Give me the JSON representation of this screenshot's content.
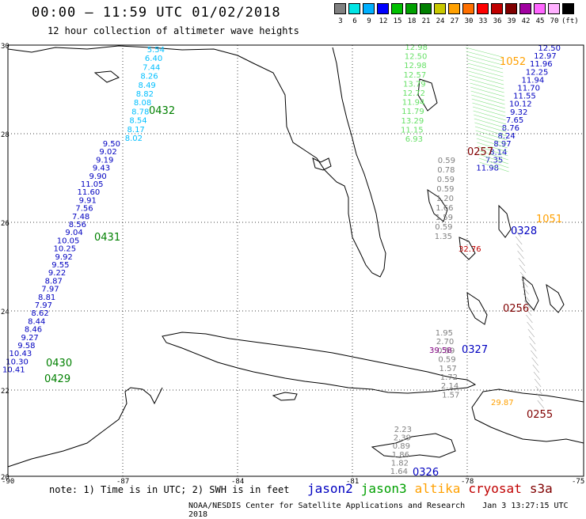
{
  "header": {
    "title": "00:00 — 11:59 UTC 01/02/2018",
    "subtitle": "12 hour collection of altimeter wave heights"
  },
  "scale": {
    "colors": [
      "#808080",
      "#00e5e5",
      "#00b0ff",
      "#0000ff",
      "#00c000",
      "#00a000",
      "#008000",
      "#c8c800",
      "#ffa000",
      "#ff7000",
      "#ff0000",
      "#c00000",
      "#800000",
      "#a000a0",
      "#ff66ff",
      "#ffb0ff",
      "#000000"
    ],
    "labels": [
      "3",
      "6",
      "9",
      "12",
      "15",
      "18",
      "21",
      "24",
      "27",
      "30",
      "33",
      "36",
      "39",
      "42",
      "45",
      "70",
      "(ft)"
    ]
  },
  "map": {
    "lat_ticks": [
      "30",
      "28",
      "26",
      "24",
      "22",
      "20"
    ],
    "lon_ticks": [
      "-90",
      "-87",
      "-84",
      "-81",
      "-78",
      "-75"
    ]
  },
  "tracks": [
    {
      "sat": "jason3",
      "color": "#00bfff",
      "values": [
        "5.54",
        "6.40",
        "7.44",
        "8.26",
        "8.49",
        "8.82",
        "8.08",
        "8.78",
        "8.54",
        "8.17",
        "8.02"
      ]
    },
    {
      "sat": "jason2",
      "color": "#0000c0",
      "values": [
        "9.50",
        "9.02",
        "9.19",
        "9.43",
        "9.90",
        "11.05",
        "11.60",
        "9.91",
        "7.56",
        "7.48",
        "8.56",
        "9.04",
        "10.05",
        "10.25",
        "9.92",
        "9.55",
        "9.22",
        "8.87",
        "7.97",
        "8.81",
        "7.97",
        "8.62",
        "8.44",
        "8.46",
        "9.27",
        "9.58",
        "10.43",
        "10.30",
        "10.41"
      ]
    },
    {
      "sat": "jason3",
      "color": "#66e066",
      "values": [
        "12.98",
        "12.50",
        "12.98",
        "12.57",
        "13.79",
        "12.72",
        "11.94",
        "11.79",
        "13.29",
        "11.15",
        "6.93"
      ]
    },
    {
      "sat": "cryosat",
      "color": "#808080",
      "values": [
        "0.59",
        "0.78",
        "0.59",
        "0.59",
        "1.20",
        "1.66",
        "1.59",
        "0.59",
        "1.35"
      ]
    },
    {
      "sat": "jason2",
      "color": "#0000c0",
      "values": [
        "12.50",
        "12.97",
        "11.96",
        "12.25",
        "11.94",
        "11.70",
        "11.55",
        "10.12",
        "9.32",
        "7.65",
        "8.76",
        "8.24",
        "8.97",
        "8.14",
        "7.35",
        "11.98"
      ]
    },
    {
      "sat": "cryosat",
      "color": "#808080",
      "values": [
        "1.95",
        "2.70",
        "0.59",
        "0.59",
        "1.57",
        "1.72",
        "2.14",
        "1.57"
      ]
    },
    {
      "sat": "cryosat",
      "color": "#808080",
      "values": [
        "2.23",
        "2.39",
        "0.89",
        "1.86",
        "1.82",
        "1.64"
      ]
    }
  ],
  "labels": [
    {
      "text": "0432",
      "color": "#008000"
    },
    {
      "text": "0431",
      "color": "#008000"
    },
    {
      "text": "0430",
      "color": "#008000"
    },
    {
      "text": "0429",
      "color": "#008000"
    },
    {
      "text": "0257",
      "color": "#800000"
    },
    {
      "text": "1052",
      "color": "#ffa000"
    },
    {
      "text": "1051",
      "color": "#ffa000"
    },
    {
      "text": "0328",
      "color": "#0000c0"
    },
    {
      "text": "0327",
      "color": "#0000c0"
    },
    {
      "text": "0326",
      "color": "#0000c0"
    },
    {
      "text": "0256",
      "color": "#800000"
    },
    {
      "text": "0255",
      "color": "#800000"
    },
    {
      "text": "39.58",
      "color": "#800080"
    },
    {
      "text": "32.76",
      "color": "#c00000"
    },
    {
      "text": "29.87",
      "color": "#ffa000"
    }
  ],
  "footer": {
    "note": "note: 1) Time is in UTC; 2) SWH is in feet",
    "satellites": [
      {
        "name": "jason2",
        "color": "#0000c0"
      },
      {
        "name": "jason3",
        "color": "#00a000"
      },
      {
        "name": "altika",
        "color": "#ffa000"
      },
      {
        "name": "cryosat",
        "color": "#c00000"
      },
      {
        "name": "s3a",
        "color": "#800000"
      }
    ],
    "credit": "NOAA/NESDIS Center for Satellite Applications and Research",
    "timestamp": "Jan  3 13:27:15 UTC 2018"
  }
}
